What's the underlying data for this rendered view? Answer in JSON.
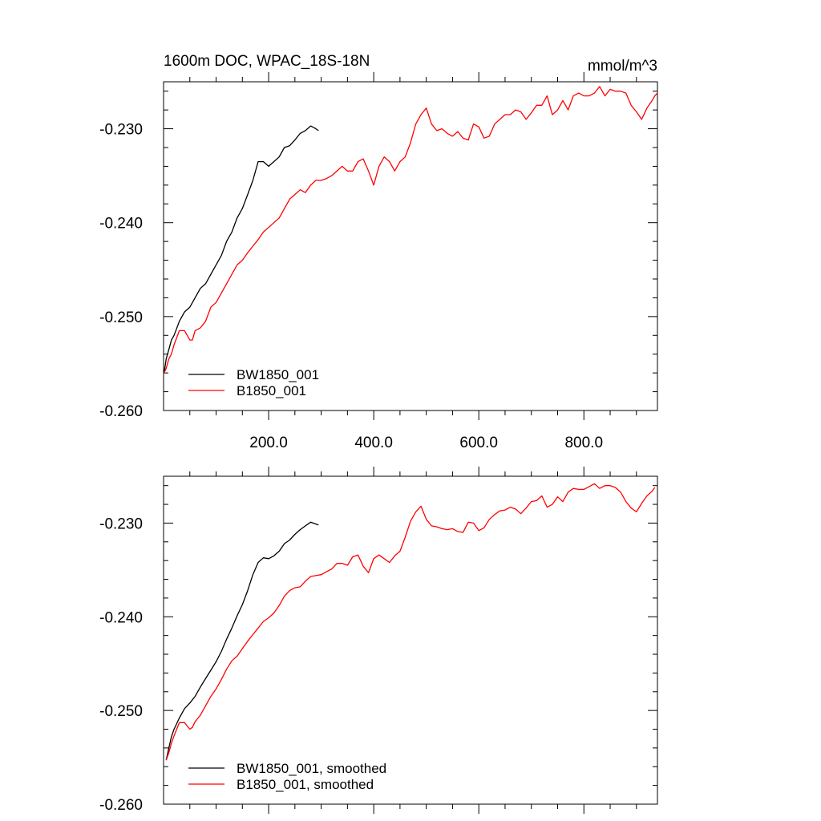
{
  "chart_data": [
    {
      "type": "line",
      "title": "1600m DOC, WPAC_18S-18N",
      "units": "mmol/m^3",
      "xlim": [
        0,
        940
      ],
      "ylim": [
        -0.26,
        -0.225
      ],
      "y_major_ticks": [
        -0.23,
        -0.24,
        -0.25,
        -0.26
      ],
      "y_tick_labels": [
        "-0.230",
        "-0.240",
        "-0.250",
        "-0.260"
      ],
      "x_major_ticks": [
        200,
        400,
        600,
        800
      ],
      "x_tick_labels": [
        "200.0",
        "400.0",
        "600.0",
        "800.0"
      ],
      "grid": false,
      "legend_position": "bottom-left",
      "series": [
        {
          "name": "BW1850_001",
          "color": "#000000",
          "x": [
            1,
            5,
            10,
            15,
            20,
            30,
            40,
            50,
            60,
            70,
            80,
            90,
            100,
            110,
            120,
            130,
            140,
            150,
            160,
            170,
            180,
            190,
            200,
            210,
            220,
            230,
            240,
            250,
            260,
            270,
            280,
            290,
            295
          ],
          "y": [
            -0.256,
            -0.2545,
            -0.2535,
            -0.2525,
            -0.252,
            -0.2505,
            -0.2495,
            -0.249,
            -0.248,
            -0.247,
            -0.2465,
            -0.2455,
            -0.2445,
            -0.2435,
            -0.242,
            -0.241,
            -0.2395,
            -0.2385,
            -0.237,
            -0.2355,
            -0.2335,
            -0.2335,
            -0.234,
            -0.2335,
            -0.233,
            -0.232,
            -0.2318,
            -0.2312,
            -0.2305,
            -0.2302,
            -0.2297,
            -0.23,
            -0.2302
          ]
        },
        {
          "name": "B1850_001",
          "color": "#ff0000",
          "x": [
            1,
            5,
            10,
            15,
            20,
            30,
            40,
            50,
            55,
            60,
            70,
            80,
            90,
            100,
            110,
            120,
            130,
            140,
            150,
            160,
            170,
            180,
            190,
            200,
            210,
            220,
            230,
            240,
            250,
            260,
            270,
            280,
            290,
            300,
            310,
            320,
            330,
            340,
            350,
            360,
            370,
            380,
            390,
            400,
            410,
            420,
            430,
            440,
            450,
            460,
            470,
            480,
            490,
            500,
            510,
            520,
            530,
            540,
            550,
            560,
            570,
            580,
            590,
            600,
            610,
            620,
            630,
            640,
            650,
            660,
            670,
            680,
            690,
            700,
            710,
            720,
            730,
            740,
            750,
            760,
            770,
            780,
            790,
            800,
            810,
            820,
            830,
            840,
            850,
            860,
            870,
            880,
            890,
            900,
            910,
            920,
            930,
            935,
            940
          ],
          "y": [
            -0.256,
            -0.2555,
            -0.2545,
            -0.254,
            -0.253,
            -0.2515,
            -0.2515,
            -0.2525,
            -0.2525,
            -0.2515,
            -0.2512,
            -0.2505,
            -0.249,
            -0.2485,
            -0.2475,
            -0.2465,
            -0.2455,
            -0.2445,
            -0.244,
            -0.2432,
            -0.2425,
            -0.2418,
            -0.241,
            -0.2405,
            -0.24,
            -0.2395,
            -0.2385,
            -0.2375,
            -0.237,
            -0.2365,
            -0.2368,
            -0.236,
            -0.2355,
            -0.2355,
            -0.2353,
            -0.235,
            -0.2345,
            -0.234,
            -0.2345,
            -0.2345,
            -0.2335,
            -0.2332,
            -0.2345,
            -0.236,
            -0.234,
            -0.233,
            -0.2335,
            -0.2345,
            -0.2335,
            -0.233,
            -0.2315,
            -0.2295,
            -0.2285,
            -0.2278,
            -0.2295,
            -0.2302,
            -0.23,
            -0.2305,
            -0.2308,
            -0.2303,
            -0.231,
            -0.2312,
            -0.2295,
            -0.2298,
            -0.231,
            -0.2308,
            -0.2295,
            -0.229,
            -0.2285,
            -0.2285,
            -0.228,
            -0.2282,
            -0.229,
            -0.2283,
            -0.2275,
            -0.2275,
            -0.2265,
            -0.2285,
            -0.228,
            -0.227,
            -0.228,
            -0.2265,
            -0.2262,
            -0.2265,
            -0.2265,
            -0.2262,
            -0.2255,
            -0.2265,
            -0.2258,
            -0.226,
            -0.226,
            -0.2262,
            -0.2275,
            -0.2282,
            -0.229,
            -0.2278,
            -0.227,
            -0.2265,
            -0.2262
          ]
        }
      ]
    },
    {
      "type": "line",
      "xlim": [
        0,
        940
      ],
      "ylim": [
        -0.26,
        -0.225
      ],
      "y_major_ticks": [
        -0.23,
        -0.24,
        -0.25,
        -0.26
      ],
      "y_tick_labels": [
        "-0.230",
        "-0.240",
        "-0.250",
        "-0.260"
      ],
      "x_major_ticks": [
        200,
        400,
        600,
        800
      ],
      "grid": false,
      "legend_position": "bottom-left",
      "series": [
        {
          "name": "BW1850_001, smoothed",
          "color": "#000000",
          "x": [
            5,
            10,
            15,
            20,
            30,
            40,
            50,
            60,
            70,
            80,
            90,
            100,
            110,
            120,
            130,
            140,
            150,
            160,
            170,
            180,
            190,
            200,
            210,
            220,
            230,
            240,
            250,
            260,
            270,
            280,
            290,
            295
          ],
          "y": [
            -0.2553,
            -0.254,
            -0.2528,
            -0.252,
            -0.2508,
            -0.2498,
            -0.2492,
            -0.2485,
            -0.2475,
            -0.2466,
            -0.2457,
            -0.2448,
            -0.2437,
            -0.2424,
            -0.2412,
            -0.2399,
            -0.2387,
            -0.2372,
            -0.2355,
            -0.2342,
            -0.2337,
            -0.2338,
            -0.2335,
            -0.233,
            -0.2322,
            -0.2318,
            -0.2312,
            -0.2307,
            -0.2303,
            -0.2299,
            -0.2301,
            -0.2302
          ]
        },
        {
          "name": "B1850_001, smoothed",
          "color": "#ff0000",
          "x": [
            5,
            10,
            15,
            20,
            30,
            40,
            50,
            55,
            60,
            70,
            80,
            90,
            100,
            110,
            120,
            130,
            140,
            150,
            160,
            170,
            180,
            190,
            200,
            210,
            220,
            230,
            240,
            250,
            260,
            270,
            280,
            290,
            300,
            310,
            320,
            330,
            340,
            350,
            360,
            370,
            380,
            390,
            400,
            410,
            420,
            430,
            440,
            450,
            460,
            470,
            480,
            490,
            500,
            510,
            520,
            530,
            540,
            550,
            560,
            570,
            580,
            590,
            600,
            610,
            620,
            630,
            640,
            650,
            660,
            670,
            680,
            690,
            700,
            710,
            720,
            730,
            740,
            750,
            760,
            770,
            780,
            790,
            800,
            810,
            820,
            830,
            840,
            850,
            860,
            870,
            880,
            890,
            900,
            910,
            920,
            930,
            935
          ],
          "y": [
            -0.2553,
            -0.2545,
            -0.2535,
            -0.2527,
            -0.2513,
            -0.2513,
            -0.252,
            -0.2518,
            -0.2512,
            -0.2505,
            -0.2495,
            -0.2485,
            -0.2477,
            -0.2467,
            -0.2456,
            -0.2447,
            -0.2442,
            -0.2434,
            -0.2426,
            -0.2419,
            -0.2412,
            -0.2405,
            -0.2401,
            -0.2396,
            -0.2388,
            -0.2378,
            -0.2372,
            -0.2369,
            -0.2368,
            -0.2362,
            -0.2357,
            -0.2356,
            -0.2355,
            -0.2352,
            -0.2349,
            -0.2343,
            -0.2343,
            -0.2345,
            -0.2336,
            -0.2334,
            -0.2346,
            -0.2353,
            -0.2338,
            -0.2334,
            -0.2338,
            -0.2342,
            -0.2335,
            -0.233,
            -0.2315,
            -0.2298,
            -0.2288,
            -0.2282,
            -0.2296,
            -0.2303,
            -0.2304,
            -0.2306,
            -0.2307,
            -0.2306,
            -0.2309,
            -0.231,
            -0.2299,
            -0.23,
            -0.2308,
            -0.2305,
            -0.2296,
            -0.2291,
            -0.2287,
            -0.2286,
            -0.2283,
            -0.2285,
            -0.229,
            -0.2284,
            -0.2277,
            -0.2276,
            -0.2271,
            -0.2283,
            -0.228,
            -0.2272,
            -0.2277,
            -0.2267,
            -0.2263,
            -0.2264,
            -0.2264,
            -0.2261,
            -0.2258,
            -0.2263,
            -0.226,
            -0.226,
            -0.2262,
            -0.2267,
            -0.2277,
            -0.2284,
            -0.2288,
            -0.2279,
            -0.2271,
            -0.2266,
            -0.2262
          ]
        }
      ]
    }
  ]
}
